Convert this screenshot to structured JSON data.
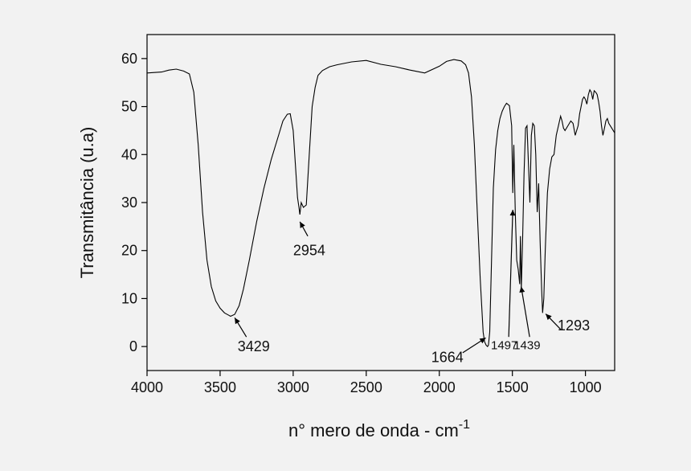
{
  "chart_data": {
    "type": "line",
    "title": "",
    "xlabel": "n° mero de onda - cm",
    "xlabel_superscript": "-1",
    "ylabel": "Transmitância (u.a)",
    "xlim": [
      4000,
      800
    ],
    "ylim": [
      -5,
      65
    ],
    "x_ticks": [
      4000,
      3500,
      3000,
      2500,
      2000,
      1500,
      1000
    ],
    "y_ticks": [
      0,
      10,
      20,
      30,
      40,
      50,
      60
    ],
    "grid": false,
    "line_color": "#000000",
    "series": [
      {
        "x": [
          4000,
          3900,
          3850,
          3800,
          3750,
          3710,
          3680,
          3650,
          3620,
          3590,
          3560,
          3530,
          3500,
          3470,
          3440,
          3429,
          3400,
          3370,
          3340,
          3300,
          3250,
          3200,
          3150,
          3100,
          3070,
          3040,
          3020,
          3000,
          2985,
          2970,
          2960,
          2954,
          2945,
          2930,
          2910,
          2890,
          2870,
          2850,
          2830,
          2800,
          2750,
          2700,
          2600,
          2500,
          2400,
          2300,
          2200,
          2100,
          2000,
          1950,
          1900,
          1850,
          1820,
          1800,
          1780,
          1760,
          1740,
          1720,
          1700,
          1690,
          1680,
          1670,
          1664,
          1655,
          1645,
          1630,
          1615,
          1600,
          1585,
          1570,
          1555,
          1540,
          1520,
          1505,
          1497,
          1490,
          1480,
          1470,
          1460,
          1450,
          1445,
          1439,
          1430,
          1420,
          1410,
          1400,
          1390,
          1380,
          1370,
          1360,
          1350,
          1340,
          1330,
          1320,
          1310,
          1300,
          1293,
          1285,
          1275,
          1260,
          1245,
          1230,
          1215,
          1200,
          1185,
          1170,
          1160,
          1150,
          1140,
          1120,
          1100,
          1085,
          1070,
          1060,
          1050,
          1040,
          1030,
          1020,
          1010,
          1000,
          990,
          980,
          970,
          960,
          950,
          940,
          930,
          920,
          910,
          900,
          890,
          880,
          870,
          860,
          850,
          840,
          820,
          800
        ],
        "y": [
          57,
          57.2,
          57.6,
          57.8,
          57.4,
          56.8,
          53,
          42,
          28,
          18,
          12.5,
          9.5,
          8,
          7,
          6.5,
          6.3,
          6.7,
          8.5,
          12,
          18,
          26,
          33,
          39,
          44,
          47,
          48.4,
          48.5,
          45,
          38,
          31,
          29,
          27.5,
          30,
          29,
          29.5,
          40,
          50,
          54,
          56.5,
          57.5,
          58.3,
          58.7,
          59.3,
          59.6,
          58.8,
          58.3,
          57.6,
          57,
          58.4,
          59.4,
          59.8,
          59.5,
          58.7,
          57,
          52,
          42,
          28,
          14,
          3,
          1,
          0.3,
          0,
          0.3,
          3,
          15,
          33,
          41,
          45,
          47.5,
          49,
          50,
          50.7,
          50.2,
          46,
          32,
          42,
          28,
          18,
          16,
          13,
          23,
          12,
          22,
          36,
          45.5,
          46,
          38,
          30,
          44,
          46.5,
          46,
          40,
          28,
          34,
          22,
          12,
          7,
          10,
          20,
          32,
          37,
          39.5,
          40,
          44,
          46,
          48,
          47,
          45.5,
          45,
          46,
          47,
          46.5,
          44,
          45,
          46,
          48.5,
          50,
          51.5,
          52,
          51.5,
          50.5,
          52.5,
          53.5,
          53,
          51.5,
          53.3,
          53,
          52.5,
          51,
          49,
          46,
          44,
          45.5,
          47,
          47.5,
          46.5,
          45.5,
          44.5
        ]
      }
    ],
    "annotations": [
      {
        "text": "3429",
        "x": 3270,
        "y": -1,
        "arrow_tip": [
          3400,
          6
        ],
        "arrow_tail": [
          3320,
          2
        ],
        "size": "normal"
      },
      {
        "text": "2954",
        "x": 2890,
        "y": 19,
        "arrow_tip": [
          2954,
          26
        ],
        "arrow_tail": [
          2900,
          23
        ],
        "size": "normal"
      },
      {
        "text": "1664",
        "x": 1945,
        "y": -3.2,
        "arrow_tip": [
          1682,
          1.8
        ],
        "arrow_tail": [
          1840,
          -1.3
        ],
        "size": "normal"
      },
      {
        "text": "1497",
        "x": 1555,
        "y": -0.6,
        "arrow_tip": [
          1497,
          28.5
        ],
        "arrow_tail": [
          1525,
          2
        ],
        "size": "small"
      },
      {
        "text": "1439",
        "x": 1400,
        "y": -0.6,
        "arrow_tip": [
          1440,
          12.5
        ],
        "arrow_tail": [
          1382,
          2
        ],
        "size": "small"
      },
      {
        "text": "1293",
        "x": 1080,
        "y": 3.4,
        "arrow_tip": [
          1272,
          6.8
        ],
        "arrow_tail": [
          1170,
          3.6
        ],
        "size": "normal"
      }
    ]
  }
}
